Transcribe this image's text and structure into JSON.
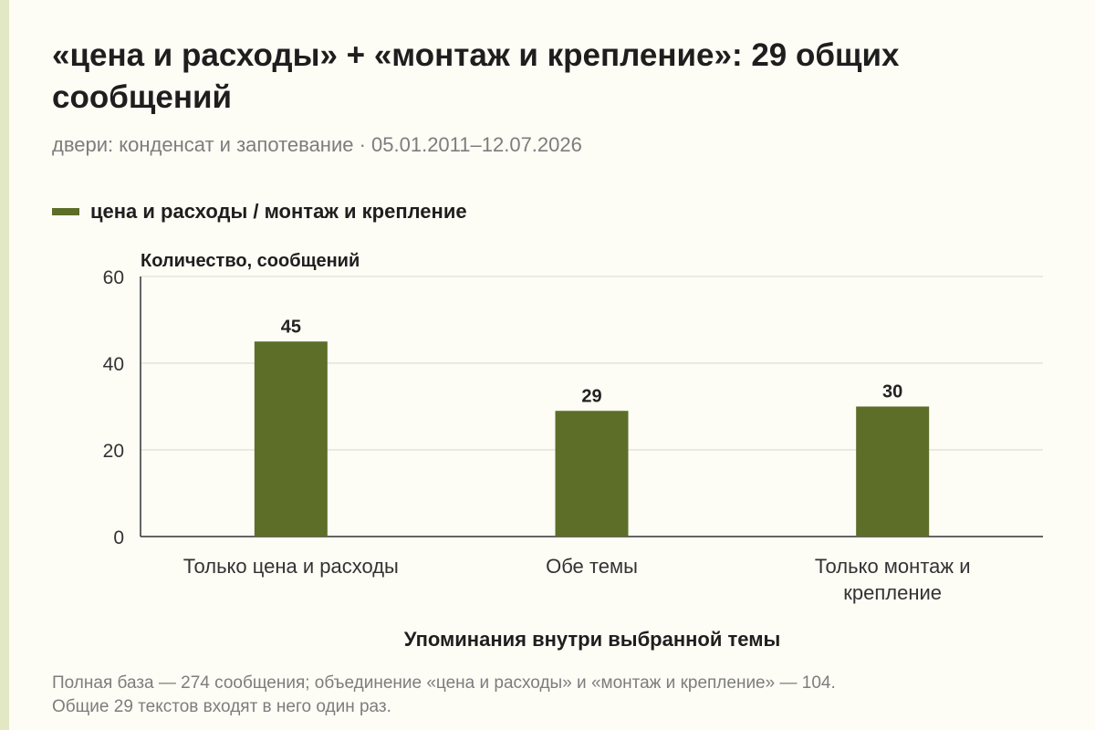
{
  "header": {
    "title": "«цена и расходы» + «монтаж и крепление»: 29 общих сообщений",
    "subtitle": "двери: конденсат и запотевание · 05.01.2011–12.07.2026"
  },
  "colors": {
    "bar": "#5d6e29",
    "background": "#fdfcf5",
    "accent_stripe": "#e3e8c4"
  },
  "chart_data": {
    "type": "bar",
    "categories": [
      "Только цена и расходы",
      "Обе темы",
      "Только монтаж и крепление"
    ],
    "series": [
      {
        "name": "цена и расходы / монтаж и крепление",
        "values": [
          45,
          29,
          30
        ]
      }
    ],
    "data_labels": [
      "45",
      "29",
      "30"
    ],
    "ylabel": "Количество, сообщений",
    "xlabel": "Упоминания внутри выбранной темы",
    "ylim": [
      0,
      60
    ],
    "yticks": [
      0,
      20,
      40,
      60
    ],
    "grid": true,
    "legend_placement": "top-left"
  },
  "footnote": {
    "line1": "Полная база — 274 сообщения; объединение «цена и расходы» и «монтаж и крепление» — 104.",
    "line2": "Общие 29 текстов входят в него один раз."
  }
}
